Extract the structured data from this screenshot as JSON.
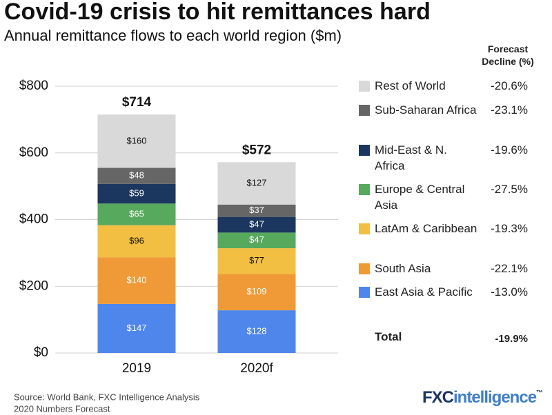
{
  "chart_data": {
    "type": "stacked_bar",
    "title": "Covid-19 crisis to hit remittances hard",
    "subtitle": "Annual remittance flows to each world region ($m)",
    "categories": [
      "2019",
      "2020f"
    ],
    "series": [
      {
        "name": "East Asia & Pacific",
        "color": "#4f86ec",
        "values": [
          147,
          128
        ],
        "value_labels": [
          "$147",
          "$128"
        ]
      },
      {
        "name": "South Asia",
        "color": "#f09a37",
        "values": [
          140,
          109
        ],
        "value_labels": [
          "$140",
          "$109"
        ]
      },
      {
        "name": "LatAm & Caribbean",
        "color": "#f2bf42",
        "values": [
          96,
          77
        ],
        "value_labels": [
          "$96",
          "$77"
        ]
      },
      {
        "name": "Europe & Central Asia",
        "color": "#57a95d",
        "values": [
          65,
          47
        ],
        "value_labels": [
          "$65",
          "$47"
        ]
      },
      {
        "name": "Mid-East & N. Africa",
        "color": "#1b365f",
        "values": [
          59,
          47
        ],
        "value_labels": [
          "$59",
          "$47"
        ]
      },
      {
        "name": "Sub-Saharan Africa",
        "color": "#666666",
        "values": [
          48,
          37
        ],
        "value_labels": [
          "$48",
          "$37"
        ]
      },
      {
        "name": "Rest of World",
        "color": "#d9d9d9",
        "values": [
          160,
          127
        ],
        "value_labels": [
          "$160",
          "$127"
        ]
      }
    ],
    "totals": {
      "values": [
        714,
        572
      ],
      "value_labels": [
        "$714",
        "$572"
      ]
    },
    "ylim": [
      0,
      800
    ],
    "yticks": [
      {
        "value": 0,
        "label": "$0"
      },
      {
        "value": 200,
        "label": "$200"
      },
      {
        "value": 400,
        "label": "$400"
      },
      {
        "value": 600,
        "label": "$600"
      },
      {
        "value": 800,
        "label": "$800"
      }
    ],
    "grid": true,
    "decline": {
      "header": "Forecast Decline (%)",
      "values": [
        -13.0,
        -22.1,
        -19.3,
        -27.5,
        -19.6,
        -23.1,
        -20.6
      ],
      "value_labels": [
        "-13.0%",
        "-22.1%",
        "-19.3%",
        "-27.5%",
        "-19.6%",
        "-23.1%",
        "-20.6%"
      ],
      "total_label": "Total",
      "total_value": -19.9,
      "total_value_label": "-19.9%"
    },
    "source": [
      "Source: World Bank, FXC Intelligence Analysis",
      "2020 Numbers Forecast"
    ],
    "logo": [
      "FXC",
      "intelligence",
      "™"
    ]
  }
}
